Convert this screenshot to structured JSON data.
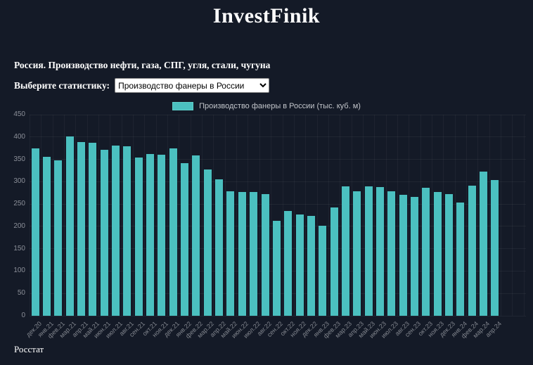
{
  "colors": {
    "background": "#141a27",
    "accent_bar": "#4bc0c0",
    "gridline": "rgba(255,255,255,0.05)",
    "tick_text": "#8b8f98",
    "legend_text": "#c2c5ca",
    "heading_text": "#ffffff"
  },
  "header": {
    "title": "InvestFinik"
  },
  "subtitle": "Россия. Производство нефти, газа, СПГ, угля, стали, чугуна",
  "selector": {
    "label": "Выберите статистику:",
    "value": "Производство фанеры в России"
  },
  "chart_data": {
    "type": "bar",
    "legend": "Производство фанеры в России (тыс. куб. м)",
    "legend_position": "top",
    "grid": true,
    "bar_color": "#4bc0c0",
    "xlabel": "",
    "ylabel": "",
    "ylim": [
      0,
      450
    ],
    "ytick_step": 50,
    "categories": [
      "дек.20",
      "янв.21",
      "фев.21",
      "мар.21",
      "апр.21",
      "май.21",
      "июн.21",
      "июл.21",
      "авг.21",
      "сен.21",
      "окт.21",
      "ноя.21",
      "дек.21",
      "янв.22",
      "фев.22",
      "мар.22",
      "апр.22",
      "май.22",
      "июн.22",
      "июл.22",
      "авг.22",
      "сен.22",
      "окт.22",
      "ноя.22",
      "дек.22",
      "янв.23",
      "фев.23",
      "мар.23",
      "апр.23",
      "май.23",
      "июн.23",
      "июл.23",
      "авг.23",
      "сен.23",
      "окт.23",
      "ноя.23",
      "дек.23",
      "янв.24",
      "фев.24",
      "мар.24",
      "апр.24"
    ],
    "values": [
      375,
      355,
      347,
      402,
      389,
      387,
      371,
      381,
      379,
      354,
      362,
      360,
      375,
      342,
      358,
      327,
      306,
      278,
      277,
      277,
      272,
      213,
      235,
      227,
      224,
      202,
      243,
      289,
      279,
      289,
      288,
      279,
      271,
      266,
      286,
      277,
      273,
      253,
      291,
      322,
      304
    ]
  },
  "footer": {
    "source": "Росстат"
  }
}
